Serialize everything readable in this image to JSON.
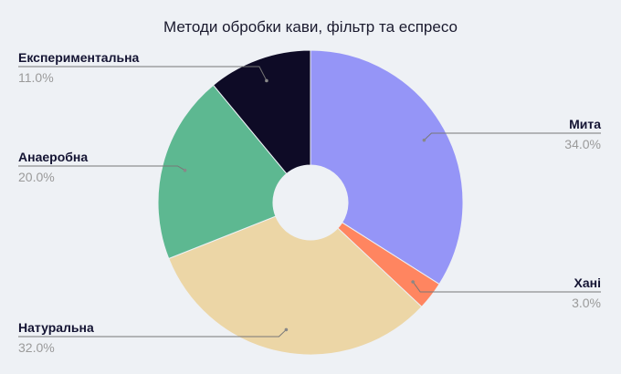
{
  "chart_data": {
    "type": "pie",
    "donut": true,
    "title": "Методи обробки кави, фільтр та еспресо",
    "slices": [
      {
        "label": "Мита",
        "value": 34.0,
        "display": "34.0%",
        "color": "#9595f7"
      },
      {
        "label": "Хані",
        "value": 3.0,
        "display": "3.0%",
        "color": "#ff8560"
      },
      {
        "label": "Натуральна",
        "value": 32.0,
        "display": "32.0%",
        "color": "#ecd6a6"
      },
      {
        "label": "Анаеробна",
        "value": 20.0,
        "display": "20.0%",
        "color": "#5db891"
      },
      {
        "label": "Експериментальна",
        "value": 11.0,
        "display": "11.0%",
        "color": "#0e0b26"
      }
    ],
    "start_angle": "top",
    "direction": "clockwise",
    "legend": "none (callout labels)"
  }
}
